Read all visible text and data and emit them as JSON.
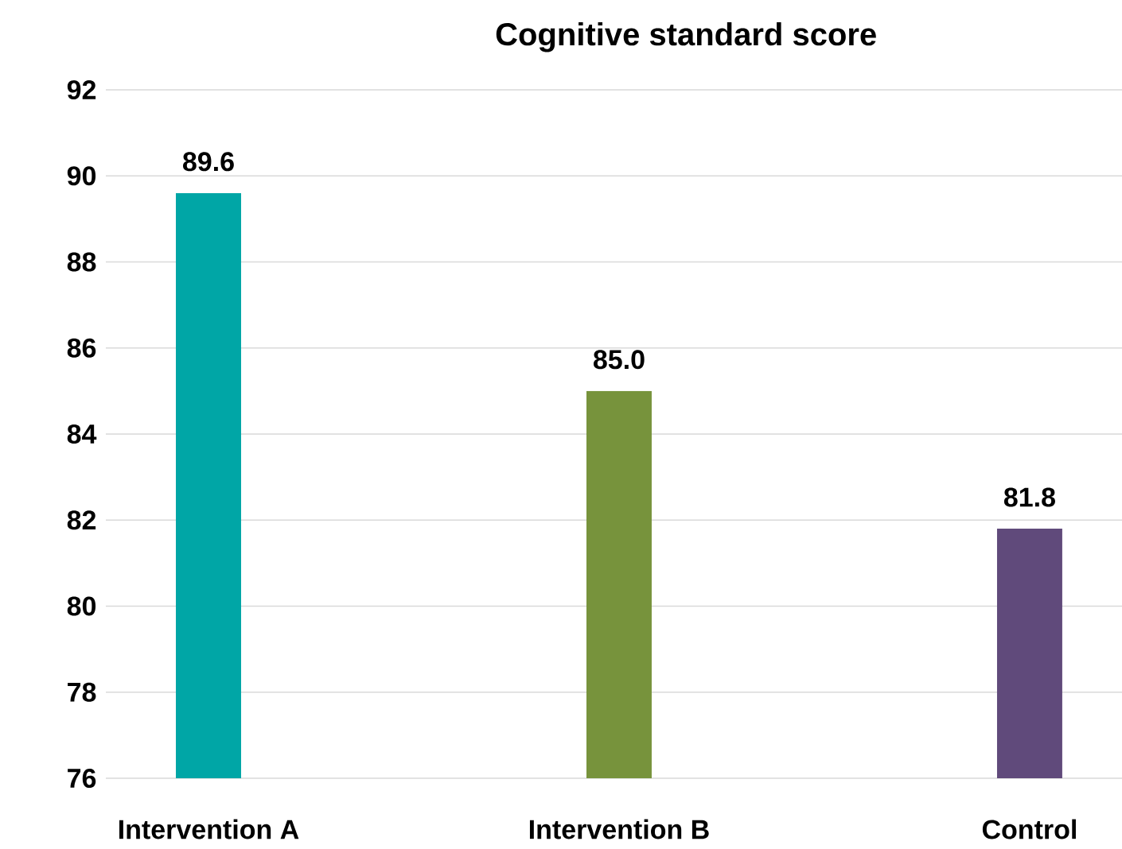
{
  "chart_data": {
    "type": "bar",
    "title": "Cognitive standard score",
    "categories": [
      "Intervention A",
      "Intervention B",
      "Control"
    ],
    "values": [
      89.6,
      85.0,
      81.8
    ],
    "value_labels": [
      "89.6",
      "85.0",
      "81.8"
    ],
    "colors": [
      "#00a6a6",
      "#77933c",
      "#604a7b"
    ],
    "ylim": [
      76,
      92
    ],
    "yticks": [
      76,
      78,
      80,
      82,
      84,
      86,
      88,
      90,
      92
    ],
    "grid": "y"
  }
}
